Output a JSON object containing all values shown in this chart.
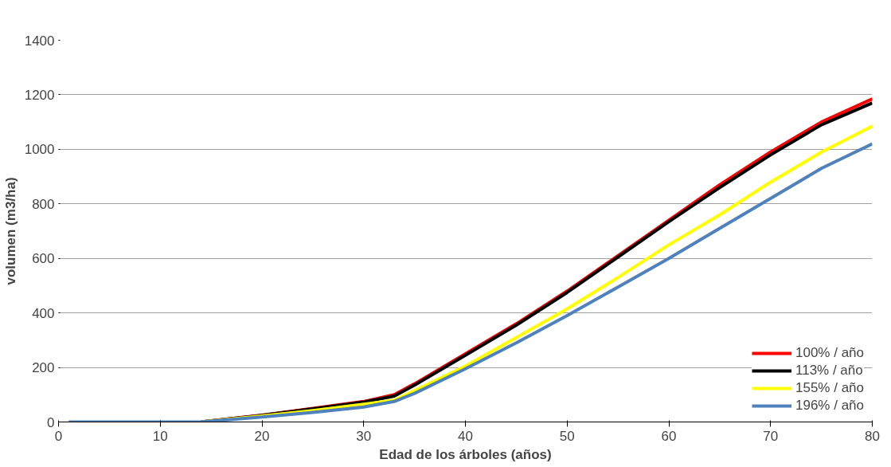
{
  "chart_data": {
    "type": "line",
    "xlabel": "Edad de los árboles (años)",
    "ylabel": "volumen (m3/ha)",
    "x": [
      1,
      10,
      14,
      20,
      25,
      30,
      33,
      35,
      40,
      45,
      50,
      55,
      60,
      65,
      70,
      75,
      80
    ],
    "series": [
      {
        "name": "100% / año",
        "color": "#ff0000",
        "values": [
          null,
          null,
          0,
          25,
          50,
          75,
          100,
          140,
          250,
          360,
          480,
          610,
          740,
          870,
          990,
          1100,
          1185
        ]
      },
      {
        "name": "113% / año",
        "color": "#000000",
        "values": [
          null,
          null,
          0,
          24,
          48,
          73,
          95,
          135,
          245,
          355,
          475,
          605,
          735,
          860,
          980,
          1090,
          1170
        ]
      },
      {
        "name": "155% / año",
        "color": "#ffff00",
        "values": [
          null,
          null,
          0,
          22,
          42,
          65,
          80,
          115,
          205,
          310,
          415,
          530,
          650,
          760,
          880,
          990,
          1085
        ]
      },
      {
        "name": "196% / año",
        "color": "#4f81bd",
        "values": [
          0,
          0,
          0,
          18,
          35,
          55,
          75,
          105,
          195,
          290,
          390,
          495,
          600,
          710,
          820,
          930,
          1020
        ]
      }
    ],
    "xlim": [
      0,
      80
    ],
    "xticks": [
      0,
      10,
      20,
      30,
      40,
      50,
      60,
      70,
      80
    ],
    "ylim": [
      0,
      1400
    ],
    "yticks": [
      0,
      200,
      400,
      600,
      800,
      1000,
      1200,
      1400
    ],
    "grid": "y",
    "legend": "bottom right",
    "marker": "none",
    "line_style": "solid"
  }
}
